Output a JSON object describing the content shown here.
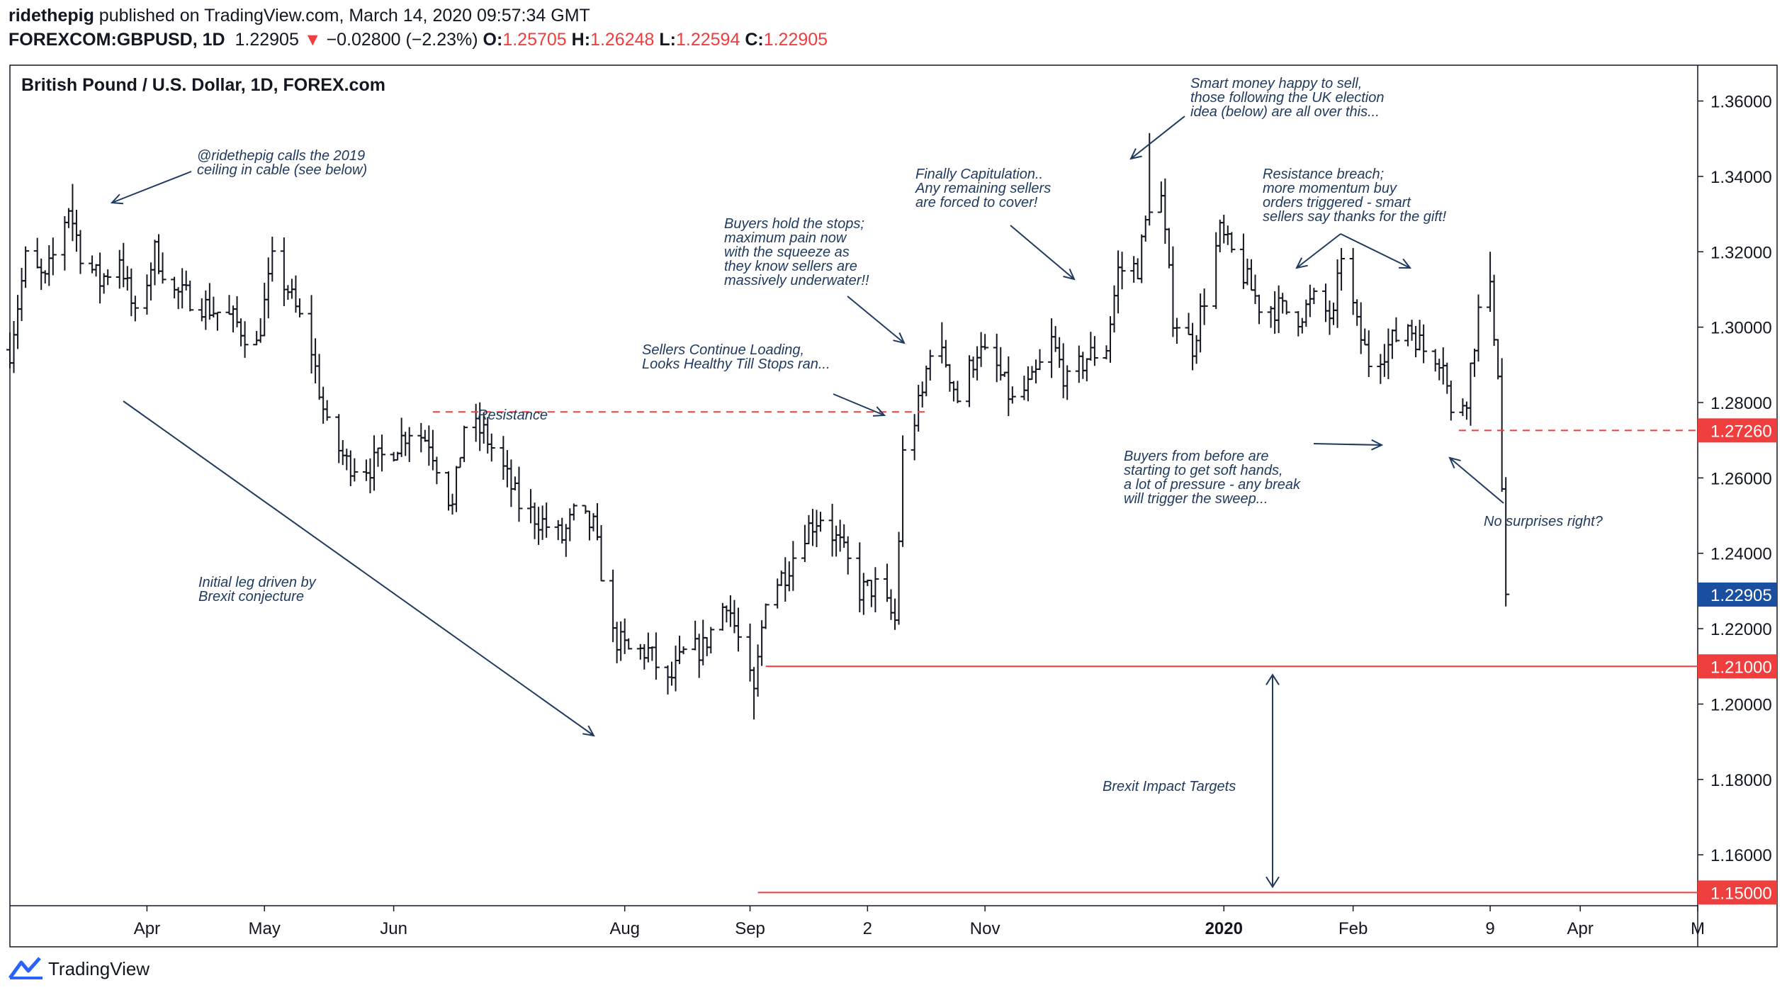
{
  "header": {
    "author": "ridethepig",
    "published_text": "published on TradingView.com, March 14, 2020 09:57:34 GMT",
    "symbol": "FOREXCOM:GBPUSD, 1D",
    "last_price": "1.22905",
    "down_arrow": "▼",
    "change": "−0.02800 (−2.23%)",
    "o_label": "O:",
    "o_value": "1.25705",
    "h_label": "H:",
    "h_value": "1.26248",
    "l_label": "L:",
    "l_value": "1.22594",
    "c_label": "C:",
    "c_value": "1.22905"
  },
  "footer": {
    "brand": "TradingView"
  },
  "chart_data": {
    "type": "ohlc",
    "title": "British Pound / U.S. Dollar, 1D, FOREX.com",
    "ylim": [
      1.1465,
      1.3695
    ],
    "y_ticks": [
      1.16,
      1.18,
      1.2,
      1.22,
      1.24,
      1.26,
      1.28,
      1.3,
      1.32,
      1.34,
      1.36
    ],
    "y_tick_labels": [
      "1.16000",
      "1.18000",
      "1.20000",
      "1.22000",
      "1.24000",
      "1.26000",
      "1.28000",
      "1.30000",
      "1.32000",
      "1.34000",
      "1.36000"
    ],
    "x_range": [
      "2019-02-25",
      "2020-05-01"
    ],
    "x_ticks": [
      {
        "date": "2019-04-01",
        "label": "Apr",
        "bold": false
      },
      {
        "date": "2019-05-01",
        "label": "May",
        "bold": false
      },
      {
        "date": "2019-06-03",
        "label": "Jun",
        "bold": false
      },
      {
        "date": "2019-08-01",
        "label": "Aug",
        "bold": false
      },
      {
        "date": "2019-09-02",
        "label": "Sep",
        "bold": false
      },
      {
        "date": "2019-10-02",
        "label": "2",
        "bold": false
      },
      {
        "date": "2019-11-01",
        "label": "Nov",
        "bold": false
      },
      {
        "date": "2020-01-01",
        "label": "2020",
        "bold": true
      },
      {
        "date": "2020-02-03",
        "label": "Feb",
        "bold": false
      },
      {
        "date": "2020-03-09",
        "label": "9",
        "bold": false
      },
      {
        "date": "2020-04-01",
        "label": "Apr",
        "bold": false
      },
      {
        "date": "2020-05-01",
        "label": "M",
        "bold": false
      }
    ],
    "price_path": [
      [
        "2019-02-25",
        1.294
      ],
      [
        "2019-03-01",
        1.318
      ],
      [
        "2019-03-06",
        1.312
      ],
      [
        "2019-03-12",
        1.332
      ],
      [
        "2019-03-15",
        1.32
      ],
      [
        "2019-03-20",
        1.312
      ],
      [
        "2019-03-25",
        1.319
      ],
      [
        "2019-03-29",
        1.302
      ],
      [
        "2019-04-03",
        1.32
      ],
      [
        "2019-04-08",
        1.309
      ],
      [
        "2019-04-12",
        1.308
      ],
      [
        "2019-04-17",
        1.305
      ],
      [
        "2019-04-23",
        1.302
      ],
      [
        "2019-04-29",
        1.295
      ],
      [
        "2019-05-03",
        1.317
      ],
      [
        "2019-05-07",
        1.31
      ],
      [
        "2019-05-13",
        1.294
      ],
      [
        "2019-05-17",
        1.273
      ],
      [
        "2019-05-22",
        1.264
      ],
      [
        "2019-05-28",
        1.263
      ],
      [
        "2019-06-03",
        1.268
      ],
      [
        "2019-06-07",
        1.273
      ],
      [
        "2019-06-12",
        1.27
      ],
      [
        "2019-06-18",
        1.252
      ],
      [
        "2019-06-21",
        1.274
      ],
      [
        "2019-06-26",
        1.272
      ],
      [
        "2019-07-01",
        1.262
      ],
      [
        "2019-07-05",
        1.253
      ],
      [
        "2019-07-10",
        1.249
      ],
      [
        "2019-07-16",
        1.244
      ],
      [
        "2019-07-19",
        1.25
      ],
      [
        "2019-07-24",
        1.247
      ],
      [
        "2019-07-29",
        1.218
      ],
      [
        "2019-08-02",
        1.214
      ],
      [
        "2019-08-07",
        1.214
      ],
      [
        "2019-08-12",
        1.205
      ],
      [
        "2019-08-16",
        1.213
      ],
      [
        "2019-08-21",
        1.215
      ],
      [
        "2019-08-27",
        1.228
      ],
      [
        "2019-08-30",
        1.217
      ],
      [
        "2019-09-03",
        1.202
      ],
      [
        "2019-09-06",
        1.229
      ],
      [
        "2019-09-11",
        1.235
      ],
      [
        "2019-09-16",
        1.246
      ],
      [
        "2019-09-20",
        1.25
      ],
      [
        "2019-09-25",
        1.242
      ],
      [
        "2019-09-30",
        1.23
      ],
      [
        "2019-10-04",
        1.231
      ],
      [
        "2019-10-09",
        1.222
      ],
      [
        "2019-10-11",
        1.266
      ],
      [
        "2019-10-16",
        1.282
      ],
      [
        "2019-10-18",
        1.295
      ],
      [
        "2019-10-22",
        1.291
      ],
      [
        "2019-10-25",
        1.281
      ],
      [
        "2019-10-30",
        1.294
      ],
      [
        "2019-11-04",
        1.289
      ],
      [
        "2019-11-08",
        1.28
      ],
      [
        "2019-11-13",
        1.285
      ],
      [
        "2019-11-18",
        1.296
      ],
      [
        "2019-11-22",
        1.285
      ],
      [
        "2019-11-27",
        1.292
      ],
      [
        "2019-12-02",
        1.295
      ],
      [
        "2019-12-05",
        1.315
      ],
      [
        "2019-12-10",
        1.316
      ],
      [
        "2019-12-13",
        1.333
      ],
      [
        "2019-12-16",
        1.334
      ],
      [
        "2019-12-19",
        1.303
      ],
      [
        "2019-12-24",
        1.295
      ],
      [
        "2019-12-27",
        1.308
      ],
      [
        "2019-12-31",
        1.325
      ],
      [
        "2020-01-06",
        1.314
      ],
      [
        "2020-01-10",
        1.306
      ],
      [
        "2020-01-15",
        1.305
      ],
      [
        "2020-01-20",
        1.303
      ],
      [
        "2020-01-24",
        1.307
      ],
      [
        "2020-01-29",
        1.302
      ],
      [
        "2020-01-31",
        1.32
      ],
      [
        "2020-02-04",
        1.3
      ],
      [
        "2020-02-07",
        1.291
      ],
      [
        "2020-02-12",
        1.295
      ],
      [
        "2020-02-17",
        1.301
      ],
      [
        "2020-02-21",
        1.294
      ],
      [
        "2020-02-26",
        1.292
      ],
      [
        "2020-02-28",
        1.276
      ],
      [
        "2020-03-03",
        1.282
      ],
      [
        "2020-03-06",
        1.304
      ],
      [
        "2020-03-09",
        1.309
      ],
      [
        "2020-03-11",
        1.289
      ],
      [
        "2020-03-12",
        1.257
      ],
      [
        "2020-03-13",
        1.229
      ]
    ],
    "ohlc_spikes": [
      {
        "date": "2019-03-13",
        "high": 1.338
      },
      {
        "date": "2019-10-21",
        "high": 1.3013
      },
      {
        "date": "2019-12-13",
        "high": 1.3515
      },
      {
        "date": "2020-01-31",
        "high": 1.321
      },
      {
        "date": "2020-03-09",
        "high": 1.32
      },
      {
        "date": "2019-09-03",
        "low": 1.1959
      },
      {
        "date": "2020-03-13",
        "low": 1.2259
      }
    ],
    "levels": [
      {
        "name": "resistance",
        "price": 1.2775,
        "style": "dashed",
        "color": "#ef3e3e",
        "from": "2019-06-13",
        "to": "2019-10-18",
        "label": "Resistance"
      },
      {
        "name": "level-127260",
        "price": 1.2726,
        "style": "dashed",
        "color": "#ef3e3e",
        "from": "2020-03-01",
        "to": "2020-05-01",
        "badge": "1.27260"
      },
      {
        "name": "level-121000",
        "price": 1.21,
        "style": "solid",
        "color": "#ef3e3e",
        "from": "2019-09-06",
        "to": "2020-05-01",
        "badge": "1.21000"
      },
      {
        "name": "level-115000",
        "price": 1.15,
        "style": "solid",
        "color": "#ef3e3e",
        "from": "2019-09-04",
        "to": "2020-05-01",
        "badge": "1.15000"
      }
    ],
    "last_price_badge": {
      "price": 1.22905,
      "label": "1.22905",
      "color": "#1a4fa0"
    },
    "annotations": [
      {
        "name": "note-calls-ceiling",
        "lines": [
          "@ridethepig calls the 2019",
          "ceiling in cable (see below)"
        ]
      },
      {
        "name": "note-initial-leg",
        "lines": [
          "Initial leg driven by",
          "Brexit conjecture"
        ]
      },
      {
        "name": "note-resistance",
        "lines": [
          "Resistance"
        ]
      },
      {
        "name": "note-sellers-loading",
        "lines": [
          "Sellers Continue Loading,",
          "Looks Healthy Till Stops ran..."
        ]
      },
      {
        "name": "note-buyers-hold",
        "lines": [
          "Buyers hold the stops;",
          "maximum pain now",
          "with the squeeze as",
          "they know sellers are",
          "massively underwater!!"
        ]
      },
      {
        "name": "note-capitulation",
        "lines": [
          "Finally Capitulation..",
          "Any remaining sellers",
          "are forced to cover!"
        ]
      },
      {
        "name": "note-smart-money",
        "lines": [
          "Smart money happy to sell,",
          "those following the UK election",
          "idea (below) are all over this..."
        ]
      },
      {
        "name": "note-resistance-breach",
        "lines": [
          "Resistance breach;",
          "more momentum buy",
          "orders triggered - smart",
          "sellers say thanks for the gift!"
        ]
      },
      {
        "name": "note-soft-hands",
        "lines": [
          "Buyers from before are",
          "starting to get soft hands,",
          "a lot of pressure - any break",
          "will trigger the sweep..."
        ]
      },
      {
        "name": "note-no-surprises",
        "lines": [
          "No surprises right?"
        ]
      },
      {
        "name": "note-brexit-targets",
        "lines": [
          "Brexit Impact Targets"
        ]
      }
    ]
  }
}
